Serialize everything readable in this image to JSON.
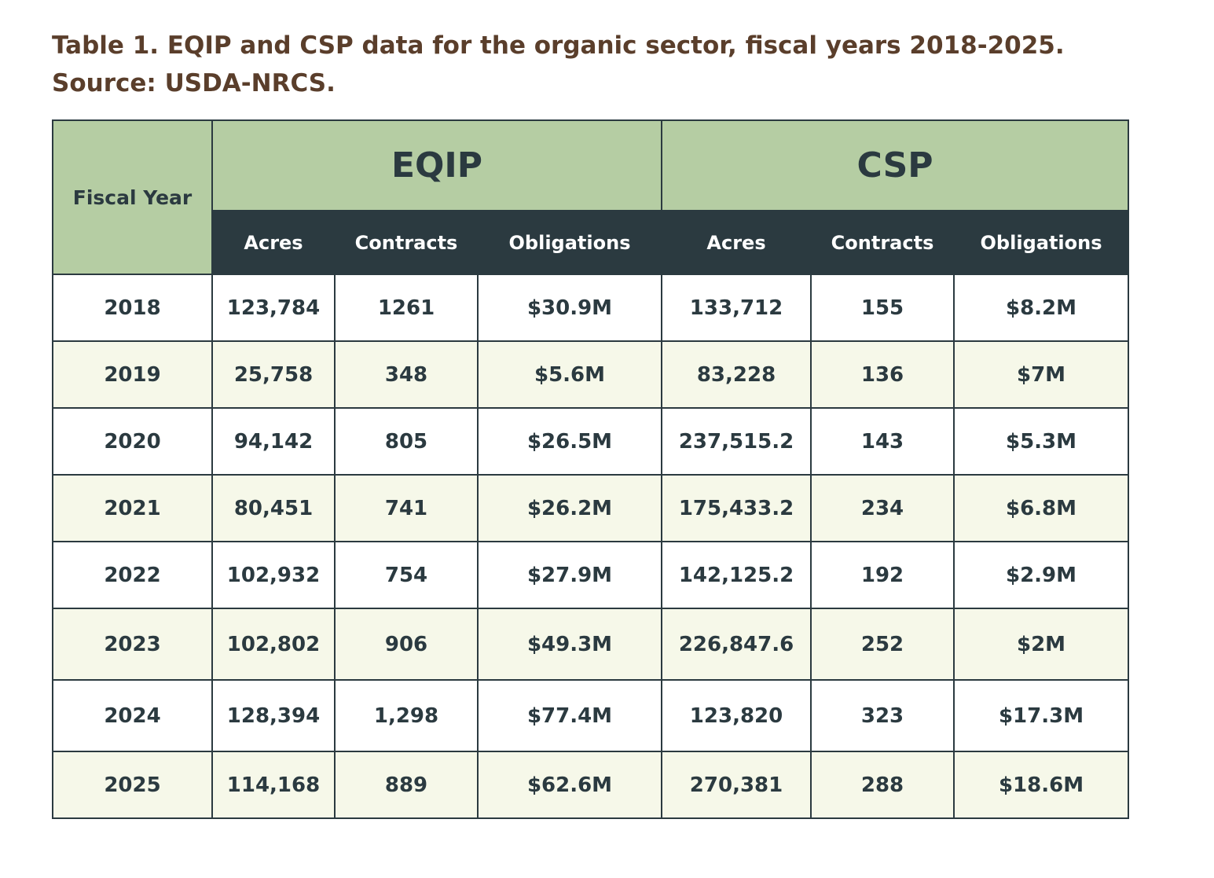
{
  "caption": {
    "line1": "Table 1. EQIP and CSP data for the organic sector, fiscal years 2018-2025.",
    "line2": "Source: USDA-NRCS."
  },
  "table": {
    "fiscal_year_header": "Fiscal Year",
    "group_headers": [
      "EQIP",
      "CSP"
    ],
    "sub_headers": [
      "Acres",
      "Contracts",
      "Obligations",
      "Acres",
      "Contracts",
      "Obligations"
    ],
    "rows": [
      [
        "2018",
        "123,784",
        "1261",
        "$30.9M",
        "133,712",
        "155",
        "$8.2M"
      ],
      [
        "2019",
        "25,758",
        "348",
        "$5.6M",
        "83,228",
        "136",
        "$7M"
      ],
      [
        "2020",
        "94,142",
        "805",
        "$26.5M",
        "237,515.2",
        "143",
        "$5.3M"
      ],
      [
        "2021",
        "80,451",
        "741",
        "$26.2M",
        "175,433.2",
        "234",
        "$6.8M"
      ],
      [
        "2022",
        "102,932",
        "754",
        "$27.9M",
        "142,125.2",
        "192",
        "$2.9M"
      ],
      [
        "2023",
        "102,802",
        "906",
        "$49.3M",
        "226,847.6",
        "252",
        "$2M"
      ],
      [
        "2024",
        "128,394",
        "1,298",
        "$77.4M",
        "123,820",
        "323",
        "$17.3M"
      ],
      [
        "2025",
        "114,168",
        "889",
        "$62.6M",
        "270,381",
        "288",
        "$18.6M"
      ]
    ]
  },
  "colors": {
    "title": "#5a3e2b",
    "header_green": "#b5cda3",
    "header_dark": "#2b3a40",
    "row_alt": "#f6f8e9"
  }
}
